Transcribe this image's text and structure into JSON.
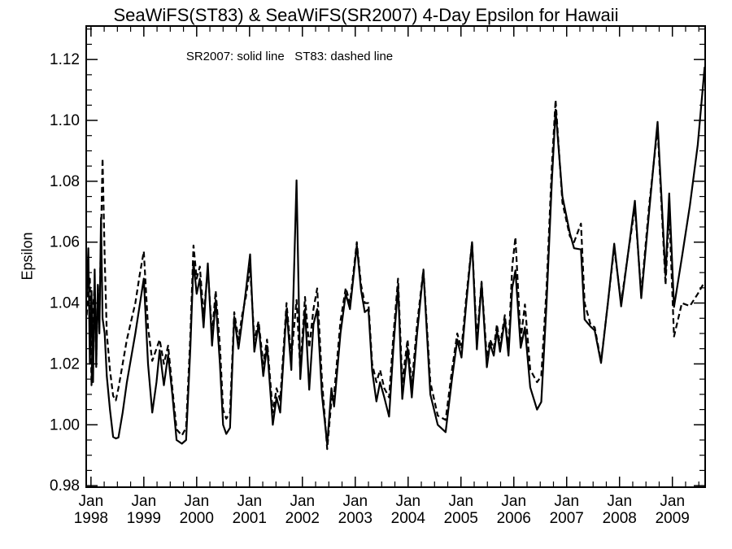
{
  "page": {
    "background": "#ffffff",
    "foreground": "#000000"
  },
  "header": {
    "title": "SeaWiFS(ST83) & SeaWiFS(SR2007) 4-Day Epsilon for Hawaii"
  },
  "chart_data": {
    "type": "line",
    "title": "SeaWiFS(ST83) & SeaWiFS(SR2007) 4-Day Epsilon for Hawaii",
    "annotation": "SR2007: solid line   ST83: dashed line",
    "ylabel": "Epsilon",
    "xlabel": "",
    "grid": false,
    "legend_position": "top-center-inside",
    "line_color": "#000000",
    "xlim": [
      1997.91,
      2009.62
    ],
    "ylim": [
      0.9795,
      1.131
    ],
    "x_major_ticks": [
      1998,
      1999,
      2000,
      2001,
      2002,
      2003,
      2004,
      2005,
      2006,
      2007,
      2008,
      2009
    ],
    "x_tick_month": "Jan",
    "x_tick_years": [
      "1998",
      "1999",
      "2000",
      "2001",
      "2002",
      "2003",
      "2004",
      "2005",
      "2006",
      "2007",
      "2008",
      "2009"
    ],
    "x_minor_step": 0.25,
    "y_major_ticks": [
      0.98,
      1.0,
      1.02,
      1.04,
      1.06,
      1.08,
      1.1,
      1.12
    ],
    "y_tick_labels": [
      "0.98",
      "1.00",
      "1.02",
      "1.04",
      "1.06",
      "1.08",
      "1.10",
      "1.12"
    ],
    "y_minor_step": 0.005,
    "x": [
      1997.92,
      1997.95,
      1997.98,
      1998.01,
      1998.04,
      1998.07,
      1998.1,
      1998.13,
      1998.16,
      1998.19,
      1998.22,
      1998.26,
      1998.3,
      1998.36,
      1998.42,
      1998.47,
      1998.52,
      1998.6,
      1998.68,
      1998.76,
      1998.84,
      1998.92,
      1999.0,
      1999.08,
      1999.16,
      1999.24,
      1999.3,
      1999.38,
      1999.46,
      1999.54,
      1999.62,
      1999.72,
      1999.8,
      1999.88,
      1999.94,
      2000.0,
      2000.06,
      2000.13,
      2000.21,
      2000.29,
      2000.36,
      2000.44,
      2000.5,
      2000.56,
      2000.63,
      2000.71,
      2000.79,
      2000.86,
      2000.93,
      2001.01,
      2001.09,
      2001.17,
      2001.26,
      2001.33,
      2001.44,
      2001.51,
      2001.58,
      2001.7,
      2001.79,
      2001.89,
      2001.96,
      2002.05,
      2002.13,
      2002.21,
      2002.28,
      2002.37,
      2002.47,
      2002.55,
      2002.6,
      2002.72,
      2002.82,
      2002.9,
      2003.03,
      2003.11,
      2003.18,
      2003.25,
      2003.32,
      2003.4,
      2003.47,
      2003.55,
      2003.64,
      2003.72,
      2003.81,
      2003.89,
      2003.99,
      2004.07,
      2004.17,
      2004.29,
      2004.42,
      2004.56,
      2004.71,
      2004.83,
      2004.93,
      2005.01,
      2005.1,
      2005.21,
      2005.3,
      2005.39,
      2005.49,
      2005.55,
      2005.62,
      2005.68,
      2005.74,
      2005.83,
      2005.9,
      2005.97,
      2006.03,
      2006.13,
      2006.21,
      2006.31,
      2006.44,
      2006.52,
      2006.62,
      2006.72,
      2006.79,
      2006.92,
      2007.06,
      2007.14,
      2007.27,
      2007.34,
      2007.45,
      2007.53,
      2007.65,
      2007.78,
      2007.9,
      2008.03,
      2008.16,
      2008.29,
      2008.41,
      2008.56,
      2008.72,
      2008.87,
      2008.94,
      2009.03,
      2009.18,
      2009.33,
      2009.48,
      2009.61
    ],
    "series": [
      {
        "name": "SR2007",
        "style": "solid",
        "values": [
          1.042,
          1.058,
          1.02,
          1.044,
          1.014,
          1.051,
          1.019,
          1.046,
          1.03,
          1.068,
          1.035,
          1.03,
          1.016,
          1.005,
          0.996,
          0.9955,
          0.9958,
          1.004,
          1.014,
          1.022,
          1.03,
          1.039,
          1.048,
          1.02,
          1.004,
          1.014,
          1.0245,
          1.013,
          1.023,
          1.01,
          0.995,
          0.9938,
          0.995,
          1.025,
          1.0536,
          1.043,
          1.048,
          1.032,
          1.053,
          1.026,
          1.041,
          1.02,
          1.0,
          0.997,
          0.999,
          1.0355,
          1.025,
          1.034,
          1.044,
          1.056,
          1.024,
          1.033,
          1.016,
          1.026,
          1.0,
          1.009,
          1.004,
          1.038,
          1.018,
          1.0803,
          1.015,
          1.038,
          1.0115,
          1.033,
          1.038,
          1.01,
          0.9936,
          1.012,
          1.006,
          1.03,
          1.043,
          1.038,
          1.059,
          1.0443,
          1.037,
          1.038,
          1.0177,
          1.0077,
          1.014,
          1.009,
          1.0027,
          1.025,
          1.0456,
          1.0085,
          1.0252,
          1.009,
          1.03,
          1.0507,
          1.01,
          1.0,
          0.9976,
          1.015,
          1.028,
          1.0221,
          1.04,
          1.06,
          1.0248,
          1.0467,
          1.0189,
          1.0266,
          1.0227,
          1.031,
          1.024,
          1.0347,
          1.0227,
          1.045,
          1.0507,
          1.0253,
          1.032,
          1.0123,
          1.005,
          1.0075,
          1.04,
          1.08,
          1.1035,
          1.075,
          1.063,
          1.058,
          1.0576,
          1.0346,
          1.0323,
          1.031,
          1.0203,
          1.04,
          1.0595,
          1.0389,
          1.056,
          1.0736,
          1.0416,
          1.07,
          1.0995,
          1.049,
          1.076,
          1.0387,
          1.055,
          1.072,
          1.092,
          1.1176
        ]
      },
      {
        "name": "ST83",
        "style": "dashed",
        "values": [
          1.036,
          1.044,
          1.048,
          1.013,
          1.038,
          1.046,
          1.021,
          1.044,
          1.036,
          1.062,
          1.0875,
          1.055,
          1.03,
          1.018,
          1.0095,
          1.008,
          1.012,
          1.02,
          1.028,
          1.034,
          1.04,
          1.049,
          1.057,
          1.032,
          1.021,
          1.025,
          1.028,
          1.02,
          1.026,
          1.012,
          0.9985,
          0.9965,
          0.999,
          1.029,
          1.0589,
          1.048,
          1.052,
          1.036,
          1.051,
          1.03,
          1.044,
          1.026,
          1.005,
          1.002,
          1.004,
          1.037,
          1.028,
          1.036,
          1.042,
          1.0515,
          1.028,
          1.034,
          1.02,
          1.028,
          1.004,
          1.012,
          1.008,
          1.04,
          1.022,
          1.041,
          1.018,
          1.042,
          1.0253,
          1.038,
          1.0448,
          1.015,
          0.992,
          1.008,
          1.01,
          1.034,
          1.045,
          1.04,
          1.06,
          1.046,
          1.04,
          1.04,
          1.02,
          1.014,
          1.018,
          1.012,
          1.009,
          1.029,
          1.048,
          1.014,
          1.028,
          1.013,
          1.033,
          1.051,
          1.014,
          1.003,
          1.0016,
          1.018,
          1.03,
          1.025,
          1.042,
          1.06,
          1.028,
          1.047,
          1.022,
          1.028,
          1.025,
          1.033,
          1.026,
          1.036,
          1.025,
          1.052,
          1.0616,
          1.028,
          1.0395,
          1.0181,
          1.014,
          1.016,
          1.045,
          1.085,
          1.1067,
          1.073,
          1.062,
          1.06,
          1.0661,
          1.04,
          1.033,
          1.032,
          1.0208,
          1.04,
          1.0583,
          1.04,
          1.056,
          1.0715,
          1.043,
          1.072,
          1.0975,
          1.046,
          1.07,
          1.029,
          1.04,
          1.039,
          1.043,
          1.047
        ]
      }
    ]
  }
}
